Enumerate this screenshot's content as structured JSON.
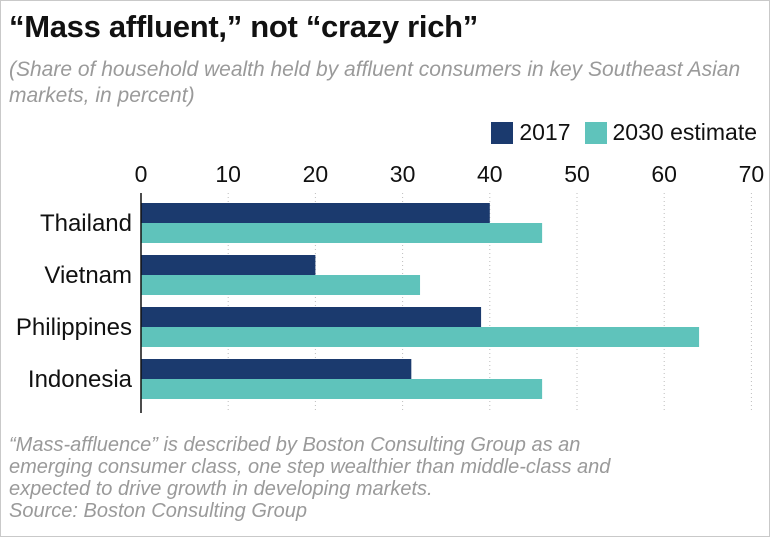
{
  "title": "“Mass affluent,” not “crazy rich”",
  "subtitle": "(Share of household wealth held by affluent consumers in key Southeast Asian markets, in percent)",
  "legend": [
    {
      "label": "2017",
      "color": "#1b3a6e"
    },
    {
      "label": "2030 estimate",
      "color": "#5fc3bb"
    }
  ],
  "footnote": {
    "line1": "“Mass-affluence” is described by Boston Consulting Group as an",
    "line2": "emerging consumer class, one step wealthier than middle-class and",
    "line3": "expected to drive growth in developing markets.",
    "source": "Source: Boston Consulting Group"
  },
  "chart_data": {
    "type": "bar",
    "orientation": "horizontal",
    "categories": [
      "Thailand",
      "Vietnam",
      "Philippines",
      "Indonesia"
    ],
    "series": [
      {
        "name": "2017",
        "values": [
          40,
          20,
          39,
          31
        ],
        "color": "#1b3a6e"
      },
      {
        "name": "2030 estimate",
        "values": [
          46,
          32,
          64,
          46
        ],
        "color": "#5fc3bb"
      }
    ],
    "xlim": [
      0,
      70
    ],
    "xticks": [
      0,
      10,
      20,
      30,
      40,
      50,
      60,
      70
    ],
    "xaxis_position": "top",
    "grid": "vertical dotted",
    "legend_position": "top-right"
  }
}
